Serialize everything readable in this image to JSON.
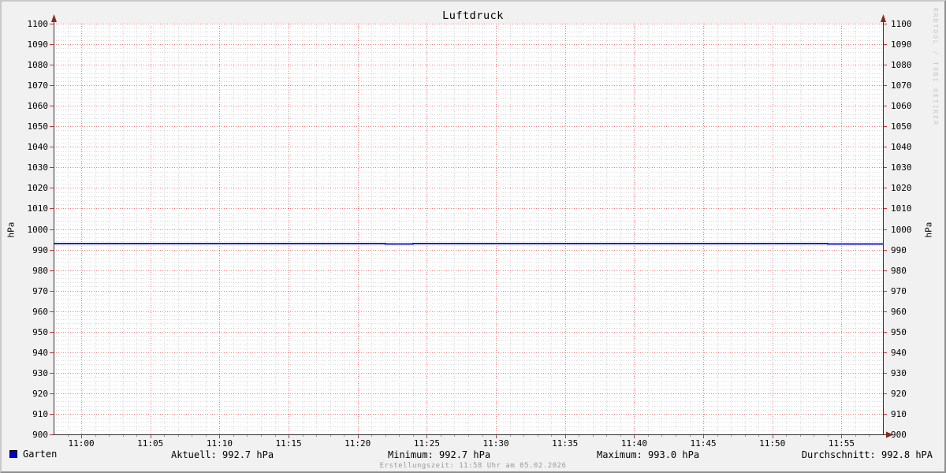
{
  "title": "Luftdruck",
  "watermark": "RRDTOOL / TOBI OETIKER",
  "footer": {
    "created": "Erstellungszeit: 11:58 Uhr am 05.02.2026"
  },
  "legend": {
    "series_label": "Garten",
    "stats": [
      {
        "id": "aktuell",
        "label": "Aktuell: 992.7 hPa"
      },
      {
        "id": "minimum",
        "label": "Minimum: 992.7 hPa"
      },
      {
        "id": "maximum",
        "label": "Maximum: 993.0 hPa"
      },
      {
        "id": "durchschnitt",
        "label": "Durchschnitt: 992.8 hPA"
      }
    ]
  },
  "colors": {
    "background": "#f1f1f1",
    "canvas": "#ffffff",
    "grid_minor": "#d9d9d9",
    "grid_major": "#e87d7d",
    "tick_major": "#cc3333",
    "tick_minor": "#9a9a9a",
    "axis": "#303030",
    "arrow": "#8b2620",
    "series": "#0000c8",
    "text": "#000000",
    "muted_text": "#9a9a9a",
    "watermark": "#c6c6c6"
  },
  "chart_data": {
    "type": "line",
    "title": "Luftdruck",
    "ylabel": "hPa",
    "ylabel_right": "hPa",
    "ylim": [
      900,
      1100
    ],
    "y_tick_step": 10,
    "y_minor_step": 2,
    "x_start": "10:58",
    "x_end": "11:58",
    "x_major_step_min": 5,
    "x_minor_step_min": 1,
    "x_tick_labels": [
      "11:00",
      "11:05",
      "11:10",
      "11:15",
      "11:20",
      "11:25",
      "11:30",
      "11:35",
      "11:40",
      "11:45",
      "11:50",
      "11:55"
    ],
    "grid": true,
    "legend_position": "bottom",
    "series": [
      {
        "name": "Garten",
        "color": "#0000c8",
        "step_points": [
          {
            "t": "10:58",
            "v": 992.9
          },
          {
            "t": "11:22",
            "v": 992.7
          },
          {
            "t": "11:24",
            "v": 992.9
          },
          {
            "t": "11:54",
            "v": 992.7
          }
        ]
      }
    ],
    "stats": {
      "current_hpa": 992.7,
      "min_hpa": 992.7,
      "max_hpa": 993.0,
      "avg_hpa": 992.8
    }
  }
}
